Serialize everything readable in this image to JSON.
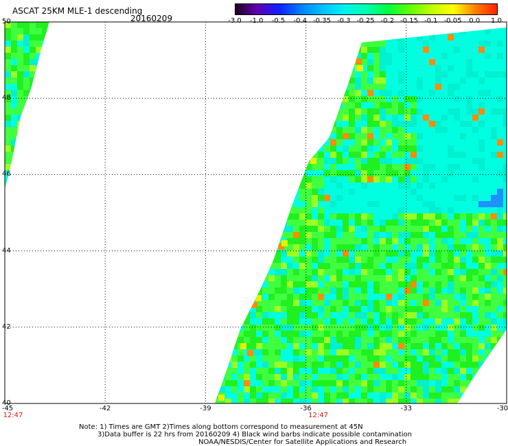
{
  "header": {
    "title": "ASCAT 25KM MLE-1 descending",
    "date": "20160209"
  },
  "colorbar": {
    "ticks": [
      "-3.0",
      "-1.0",
      "-0.5",
      "-0.4",
      "-0.35",
      "-0.3",
      "-0.25",
      "-0.2",
      "-0.15",
      "-0.1",
      "-0.05",
      "0.0",
      "1.0"
    ],
    "colors": [
      "#200020",
      "#6000b0",
      "#1020ff",
      "#0080ff",
      "#00c0ff",
      "#00f0f0",
      "#00ffb0",
      "#00ff40",
      "#60ff00",
      "#c0ff00",
      "#ffff00",
      "#ff8000",
      "#ff2000"
    ]
  },
  "map": {
    "lat_labels": [
      "50",
      "48",
      "46",
      "44",
      "42",
      "40"
    ],
    "lon_labels": [
      "-45",
      "-42",
      "-39",
      "-36",
      "-33",
      "-30"
    ],
    "time_labels": [
      "12:47",
      "12:47"
    ],
    "lat_range": [
      40,
      50
    ],
    "lon_range": [
      -45,
      -30
    ],
    "colors": {
      "cyan": "#00ffe0",
      "aqua": "#00f0d0",
      "lime": "#40ff40",
      "green": "#20f020",
      "yellow": "#e8f000",
      "orange": "#ff8c00",
      "blue": "#2090ff"
    }
  },
  "footer": {
    "note1": "Note: 1) Times are GMT 2)Times along bottom correspond to measurement at 45N",
    "note2": "3)Data buffer is 22 hrs from 20160209 4) Black wind barbs indicate possible contamination",
    "note3": "NOAA/NESDIS/Center for Satellite Applications and Research"
  }
}
